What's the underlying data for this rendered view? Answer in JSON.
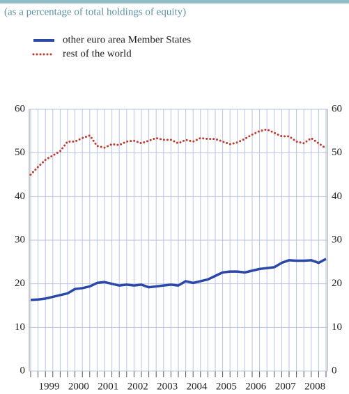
{
  "chart_data": {
    "type": "line",
    "subtitle": "(as a percentage of total holdings of equity)",
    "categories": [
      null,
      null,
      "1999",
      null,
      null,
      null,
      "2000",
      null,
      null,
      null,
      "2001",
      null,
      null,
      null,
      "2002",
      null,
      null,
      null,
      "2003",
      null,
      null,
      null,
      "2004",
      null,
      null,
      null,
      "2005",
      null,
      null,
      null,
      "2006",
      null,
      null,
      null,
      "2007",
      null,
      null,
      null,
      "2008",
      null,
      null
    ],
    "series": [
      {
        "name": "other euro area Member States",
        "color": "#2b48a8",
        "style": "solid",
        "values": [
          16.3,
          16.4,
          16.6,
          17.0,
          17.4,
          17.8,
          18.8,
          19.0,
          19.4,
          20.2,
          20.4,
          20.0,
          19.6,
          19.8,
          19.6,
          19.8,
          19.2,
          19.4,
          19.6,
          19.8,
          19.6,
          20.6,
          20.2,
          20.6,
          21.0,
          21.8,
          22.6,
          22.8,
          22.8,
          22.6,
          23.0,
          23.4,
          23.6,
          23.8,
          24.8,
          25.4,
          25.3,
          25.3,
          25.4,
          24.8,
          25.7
        ]
      },
      {
        "name": "rest of the world",
        "color": "#c0392b",
        "style": "dotted",
        "values": [
          45.0,
          46.8,
          48.4,
          49.4,
          50.4,
          52.6,
          52.6,
          53.4,
          54.0,
          51.6,
          51.2,
          52.0,
          51.8,
          52.6,
          52.8,
          52.2,
          52.8,
          53.4,
          53.0,
          53.0,
          52.2,
          53.0,
          52.6,
          53.4,
          53.2,
          53.2,
          52.6,
          52.0,
          52.4,
          53.2,
          54.2,
          55.0,
          55.4,
          54.6,
          53.8,
          53.8,
          52.6,
          52.2,
          53.4,
          52.2,
          51.0
        ]
      }
    ],
    "ylim": [
      0,
      60
    ],
    "yticks": [
      0,
      10,
      20,
      30,
      40,
      50,
      60
    ],
    "grid": true,
    "y_labels_both_sides": true
  }
}
